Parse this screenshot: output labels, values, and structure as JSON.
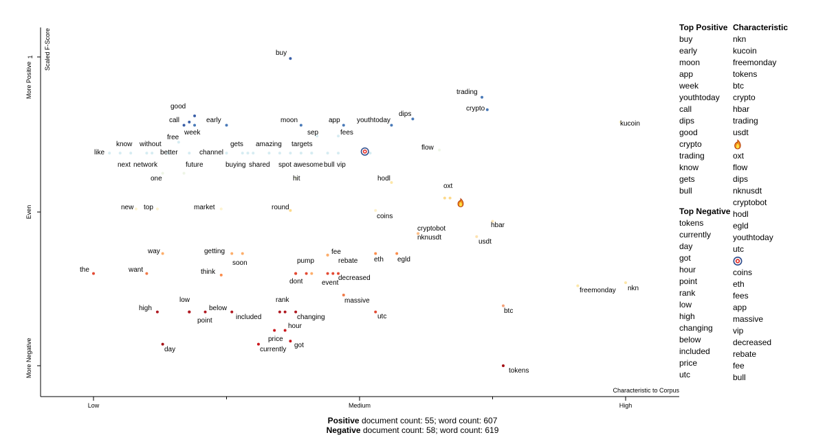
{
  "chart_data": {
    "type": "scatter",
    "x_axis": {
      "label": "Characteristic to Corpus",
      "ticks": [
        "Low",
        "Medium",
        "High"
      ]
    },
    "y_axis": {
      "label": "Scaled F-Score",
      "tick_values": [
        1
      ],
      "tick_labels": [
        "1"
      ],
      "side_labels": [
        "More Positive",
        "Even",
        "More Negative"
      ]
    },
    "points": [
      {
        "term": "buy",
        "x": 0.37,
        "y": 0.99,
        "color": "#3a5fa8"
      },
      {
        "term": "trading",
        "x": 0.73,
        "y": 0.74,
        "color": "#4a7ab8"
      },
      {
        "term": "crypto",
        "x": 0.74,
        "y": 0.66,
        "color": "#4a7ab8"
      },
      {
        "term": "dips",
        "x": 0.6,
        "y": 0.6,
        "color": "#4a7ab8"
      },
      {
        "term": "kucoin",
        "x": 0.99,
        "y": 0.58,
        "color": "#fdf5d6"
      },
      {
        "term": "good",
        "x": 0.19,
        "y": 0.62,
        "color": "#3a5fa8"
      },
      {
        "term": "call",
        "x": 0.17,
        "y": 0.56,
        "color": "#3a5fa8"
      },
      {
        "term": "week",
        "x": 0.19,
        "y": 0.56,
        "color": "#4a7ab8"
      },
      {
        "term": "early",
        "x": 0.25,
        "y": 0.56,
        "color": "#4a7ab8"
      },
      {
        "term": "moon",
        "x": 0.39,
        "y": 0.56,
        "color": "#4a7ab8"
      },
      {
        "term": "app",
        "x": 0.47,
        "y": 0.56,
        "color": "#4a7ab8"
      },
      {
        "term": "youthtoday",
        "x": 0.56,
        "y": 0.56,
        "color": "#4a7ab8"
      },
      {
        "term": "sep",
        "x": 0.42,
        "y": 0.49,
        "color": "#d6ecf2"
      },
      {
        "term": "fees",
        "x": 0.46,
        "y": 0.49,
        "color": "#d6ecf2"
      },
      {
        "term": "free",
        "x": 0.16,
        "y": 0.45,
        "color": "#d6ecf2"
      },
      {
        "term": "know",
        "x": 0.05,
        "y": 0.38,
        "color": "#d6ecf2"
      },
      {
        "term": "without",
        "x": 0.11,
        "y": 0.38,
        "color": "#d6ecf2"
      },
      {
        "term": "better",
        "x": 0.14,
        "y": 0.38,
        "color": "#d6ecf2"
      },
      {
        "term": "like",
        "x": 0.03,
        "y": 0.38,
        "color": "#d6ecf2"
      },
      {
        "term": "channel",
        "x": 0.25,
        "y": 0.38,
        "color": "#d6ecf2"
      },
      {
        "term": "gets",
        "x": 0.29,
        "y": 0.38,
        "color": "#d6ecf2"
      },
      {
        "term": "amazing",
        "x": 0.35,
        "y": 0.38,
        "color": "#d6ecf2"
      },
      {
        "term": "targets",
        "x": 0.41,
        "y": 0.38,
        "color": "#d6ecf2"
      },
      {
        "term": "next",
        "x": 0.07,
        "y": 0.38,
        "color": "#d6ecf2"
      },
      {
        "term": "network",
        "x": 0.1,
        "y": 0.38,
        "color": "#d6ecf2"
      },
      {
        "term": "future",
        "x": 0.18,
        "y": 0.38,
        "color": "#d6ecf2"
      },
      {
        "term": "buying",
        "x": 0.28,
        "y": 0.38,
        "color": "#d6ecf2"
      },
      {
        "term": "shared",
        "x": 0.33,
        "y": 0.38,
        "color": "#d6ecf2"
      },
      {
        "term": "spot",
        "x": 0.37,
        "y": 0.38,
        "color": "#d6ecf2"
      },
      {
        "term": "awesome",
        "x": 0.41,
        "y": 0.38,
        "color": "#d6ecf2"
      },
      {
        "term": "bull",
        "x": 0.44,
        "y": 0.38,
        "color": "#d6ecf2"
      },
      {
        "term": "vip",
        "x": 0.46,
        "y": 0.38,
        "color": "#d6ecf2"
      },
      {
        "term": "flow",
        "x": 0.65,
        "y": 0.4,
        "color": "#eef5e6"
      },
      {
        "term": "one",
        "x": 0.13,
        "y": 0.25,
        "color": "#eef5e6"
      },
      {
        "term": "hit",
        "x": 0.38,
        "y": 0.22,
        "color": "#f4f8e2"
      },
      {
        "term": "hodl",
        "x": 0.56,
        "y": 0.19,
        "color": "#fde7a8"
      },
      {
        "term": "oxt",
        "x": 0.67,
        "y": 0.09,
        "color": "#fdd98a"
      },
      {
        "term": "new",
        "x": 0.08,
        "y": 0.02,
        "color": "#fdf3d0"
      },
      {
        "term": "top",
        "x": 0.12,
        "y": 0.02,
        "color": "#fdf3d0"
      },
      {
        "term": "market",
        "x": 0.24,
        "y": 0.02,
        "color": "#fdf3d0"
      },
      {
        "term": "round",
        "x": 0.37,
        "y": 0.01,
        "color": "#fdd98a"
      },
      {
        "term": "coins",
        "x": 0.53,
        "y": 0.01,
        "color": "#fdf0c8"
      },
      {
        "term": "hbar",
        "x": 0.75,
        "y": -0.06,
        "color": "#fde7b8"
      },
      {
        "term": "cryptobot",
        "x": 0.61,
        "y": -0.14,
        "color": "#fcbd86"
      },
      {
        "term": "nknusdt",
        "x": 0.61,
        "y": -0.14,
        "color": "#fcbd86"
      },
      {
        "term": "usdt",
        "x": 0.72,
        "y": -0.16,
        "color": "#fde2b0"
      },
      {
        "term": "way",
        "x": 0.13,
        "y": -0.27,
        "color": "#fdae6b"
      },
      {
        "term": "getting",
        "x": 0.26,
        "y": -0.27,
        "color": "#fdae6b"
      },
      {
        "term": "soon",
        "x": 0.28,
        "y": -0.27,
        "color": "#fdae6b"
      },
      {
        "term": "fee",
        "x": 0.44,
        "y": -0.28,
        "color": "#fdae6b"
      },
      {
        "term": "rebate",
        "x": 0.44,
        "y": -0.28,
        "color": "#fdae6b"
      },
      {
        "term": "eth",
        "x": 0.53,
        "y": -0.27,
        "color": "#fb8d4c"
      },
      {
        "term": "egld",
        "x": 0.57,
        "y": -0.27,
        "color": "#fb8d4c"
      },
      {
        "term": "the",
        "x": 0.0,
        "y": -0.4,
        "color": "#e34a33"
      },
      {
        "term": "want",
        "x": 0.1,
        "y": -0.4,
        "color": "#f07b4a"
      },
      {
        "term": "think",
        "x": 0.24,
        "y": -0.41,
        "color": "#fb8d4c"
      },
      {
        "term": "pump",
        "x": 0.38,
        "y": -0.4,
        "color": "#e34a33"
      },
      {
        "term": "dont",
        "x": 0.38,
        "y": -0.4,
        "color": "#e34a33"
      },
      {
        "term": "event",
        "x": 0.45,
        "y": -0.4,
        "color": "#e34a33"
      },
      {
        "term": "decreased",
        "x": 0.46,
        "y": -0.4,
        "color": "#e34a33"
      },
      {
        "term": "freemonday",
        "x": 0.91,
        "y": -0.48,
        "color": "#fde7a8"
      },
      {
        "term": "nkn",
        "x": 1.0,
        "y": -0.46,
        "color": "#fde7a8"
      },
      {
        "term": "massive",
        "x": 0.47,
        "y": -0.54,
        "color": "#f07b4a"
      },
      {
        "term": "btc",
        "x": 0.77,
        "y": -0.61,
        "color": "#f4a27a"
      },
      {
        "term": "high",
        "x": 0.12,
        "y": -0.65,
        "color": "#b01a22"
      },
      {
        "term": "low",
        "x": 0.18,
        "y": -0.65,
        "color": "#b01a22"
      },
      {
        "term": "point",
        "x": 0.18,
        "y": -0.65,
        "color": "#b01a22"
      },
      {
        "term": "below",
        "x": 0.21,
        "y": -0.65,
        "color": "#b01a22"
      },
      {
        "term": "included",
        "x": 0.26,
        "y": -0.65,
        "color": "#b01a22"
      },
      {
        "term": "rank",
        "x": 0.36,
        "y": -0.65,
        "color": "#b01a22"
      },
      {
        "term": "changing",
        "x": 0.38,
        "y": -0.65,
        "color": "#b01a22"
      },
      {
        "term": "utc",
        "x": 0.53,
        "y": -0.65,
        "color": "#e34a33"
      },
      {
        "term": "hour",
        "x": 0.36,
        "y": -0.77,
        "color": "#cb181d"
      },
      {
        "term": "price",
        "x": 0.34,
        "y": -0.77,
        "color": "#cb181d"
      },
      {
        "term": "got",
        "x": 0.37,
        "y": -0.84,
        "color": "#cb181d"
      },
      {
        "term": "currently",
        "x": 0.31,
        "y": -0.86,
        "color": "#cb181d"
      },
      {
        "term": "day",
        "x": 0.13,
        "y": -0.86,
        "color": "#a50f15"
      },
      {
        "term": "tokens",
        "x": 0.77,
        "y": -1.0,
        "color": "#a50f15"
      }
    ],
    "unlabeled_points": [
      {
        "x": 0.18,
        "y": 0.58,
        "color": "#3a5fa8"
      },
      {
        "x": 0.25,
        "y": 0.38,
        "color": "#d6ecf2"
      },
      {
        "x": 0.52,
        "y": 0.38,
        "color": "#d6ecf2"
      },
      {
        "x": 0.17,
        "y": 0.25,
        "color": "#eef5e6"
      },
      {
        "x": 0.39,
        "y": 0.38,
        "color": "#d6ecf2"
      },
      {
        "x": 0.3,
        "y": 0.38,
        "color": "#d6ecf2"
      },
      {
        "x": 0.66,
        "y": 0.09,
        "color": "#fdd98a"
      },
      {
        "x": 0.4,
        "y": -0.4,
        "color": "#e34a33"
      },
      {
        "x": 0.41,
        "y": -0.4,
        "color": "#fdae6b"
      },
      {
        "x": 0.44,
        "y": -0.4,
        "color": "#e34a33"
      },
      {
        "x": 0.18,
        "y": -0.65,
        "color": "#b01a22"
      },
      {
        "x": 0.35,
        "y": -0.65,
        "color": "#b01a22"
      }
    ],
    "highlighted_points": [
      {
        "x": 0.51,
        "y": 0.39,
        "icon": "target-icon"
      },
      {
        "x": 0.69,
        "y": 0.06,
        "icon": "fire-icon"
      }
    ],
    "legend": "none"
  },
  "top_positive": {
    "title": "Top Positive",
    "items": [
      "buy",
      "early",
      "moon",
      "app",
      "week",
      "youthtoday",
      "call",
      "dips",
      "good",
      "crypto",
      "trading",
      "know",
      "gets",
      "bull"
    ]
  },
  "top_negative": {
    "title": "Top Negative",
    "items": [
      "tokens",
      "currently",
      "day",
      "got",
      "hour",
      "point",
      "rank",
      "low",
      "high",
      "changing",
      "below",
      "included",
      "price",
      "utc"
    ]
  },
  "characteristic": {
    "title": "Characteristic",
    "items": [
      {
        "label": "nkn"
      },
      {
        "label": "kucoin"
      },
      {
        "label": "freemonday"
      },
      {
        "label": "tokens"
      },
      {
        "label": "btc"
      },
      {
        "label": "crypto"
      },
      {
        "label": "hbar"
      },
      {
        "label": "trading"
      },
      {
        "label": "usdt"
      },
      {
        "icon": "fire-icon"
      },
      {
        "label": "oxt"
      },
      {
        "label": "flow"
      },
      {
        "label": "dips"
      },
      {
        "label": "nknusdt"
      },
      {
        "label": "cryptobot"
      },
      {
        "label": "hodl"
      },
      {
        "label": "egld"
      },
      {
        "label": "youthtoday"
      },
      {
        "label": "utc"
      },
      {
        "icon": "target-icon"
      },
      {
        "label": "coins"
      },
      {
        "label": "eth"
      },
      {
        "label": "fees"
      },
      {
        "label": "app"
      },
      {
        "label": "massive"
      },
      {
        "label": "vip"
      },
      {
        "label": "decreased"
      },
      {
        "label": "rebate"
      },
      {
        "label": "fee"
      },
      {
        "label": "bull"
      }
    ]
  },
  "footer": {
    "positive": {
      "label": "Positive",
      "rest": " document count: 55; word count: 607"
    },
    "negative": {
      "label": "Negative",
      "rest": " document count: 58; word count: 619"
    }
  }
}
